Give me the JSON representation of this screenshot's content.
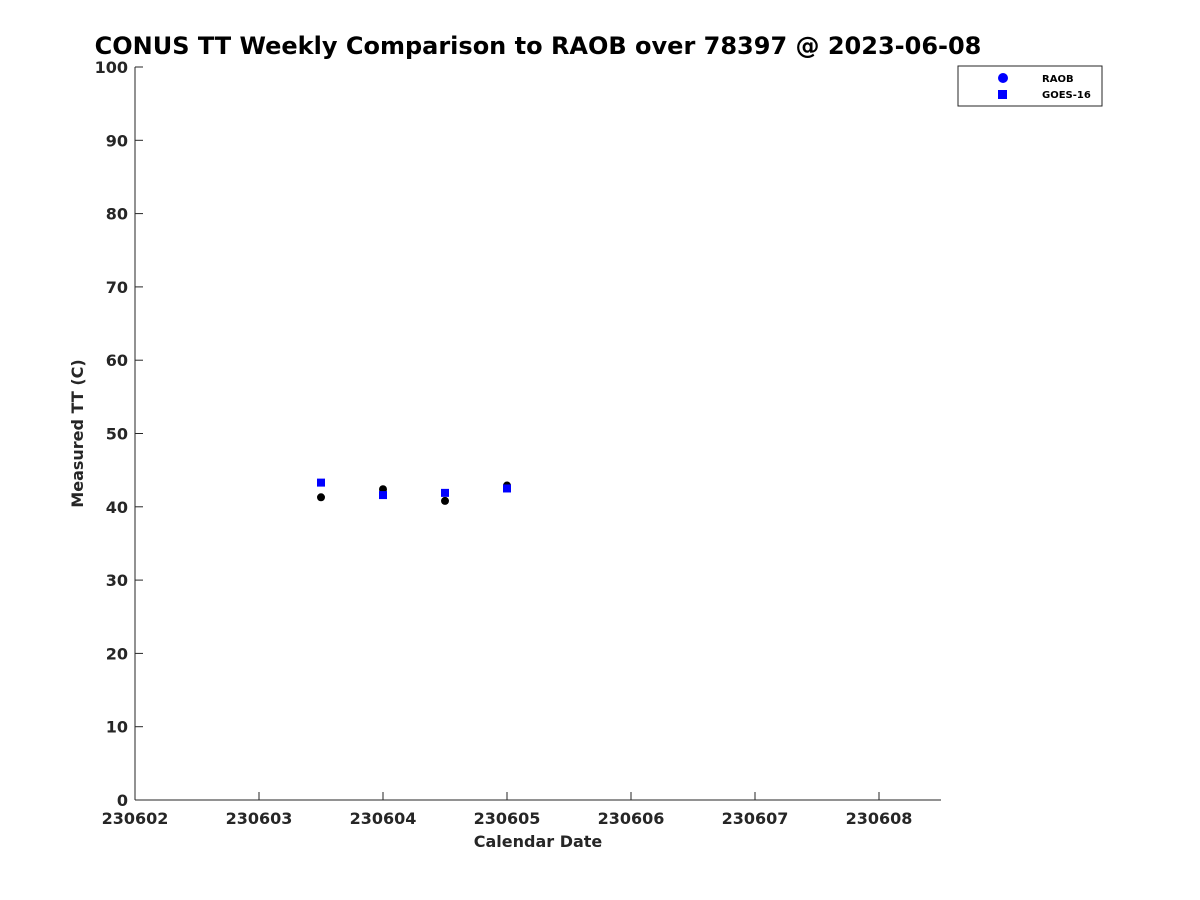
{
  "chart_data": {
    "type": "scatter",
    "title": "CONUS TT Weekly Comparison to RAOB over 78397 @ 2023-06-08",
    "xlabel": "Calendar Date",
    "ylabel": "Measured TT (C)",
    "xlim": [
      2.0,
      8.5
    ],
    "ylim": [
      0,
      100
    ],
    "x_ticks": [
      {
        "value": 2,
        "label": "230602"
      },
      {
        "value": 3,
        "label": "230603"
      },
      {
        "value": 4,
        "label": "230604"
      },
      {
        "value": 5,
        "label": "230605"
      },
      {
        "value": 6,
        "label": "230606"
      },
      {
        "value": 7,
        "label": "230607"
      },
      {
        "value": 8,
        "label": "230608"
      }
    ],
    "y_ticks": [
      0,
      10,
      20,
      30,
      40,
      50,
      60,
      70,
      80,
      90,
      100
    ],
    "legend_position": "top-right",
    "series": [
      {
        "name": "RAOB",
        "marker": "circle",
        "legend_color": "#0000ff",
        "point_color": "#000000",
        "points": [
          {
            "x": 3.5,
            "y": 41.3
          },
          {
            "x": 4.0,
            "y": 42.4
          },
          {
            "x": 4.5,
            "y": 40.8
          },
          {
            "x": 5.0,
            "y": 42.9
          }
        ]
      },
      {
        "name": "GOES-16",
        "marker": "square",
        "legend_color": "#0000ff",
        "point_color": "#0000ff",
        "points": [
          {
            "x": 3.5,
            "y": 43.3
          },
          {
            "x": 4.0,
            "y": 41.6
          },
          {
            "x": 4.5,
            "y": 41.9
          },
          {
            "x": 5.0,
            "y": 42.5
          }
        ]
      }
    ]
  }
}
